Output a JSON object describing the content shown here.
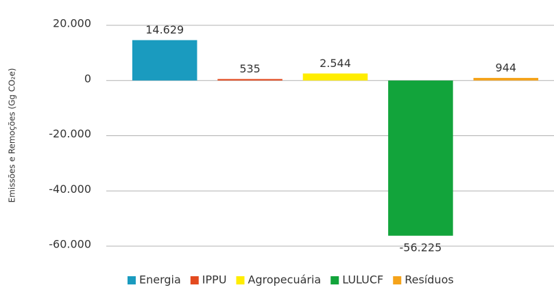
{
  "chart_data": {
    "type": "bar",
    "y_label": "Emissões e Remoções (Gg CO₂e)",
    "categories": [
      "Energia",
      "IPPU",
      "Agropecuária",
      "LULUCF",
      "Resíduos"
    ],
    "values": [
      14629,
      535,
      2544,
      -56225,
      944
    ],
    "value_labels": [
      "14.629",
      "535",
      "2.544",
      "-56.225",
      "944"
    ],
    "colors": [
      "#1a9bbf",
      "#e34a1f",
      "#ffed00",
      "#12a43b",
      "#f5a31a"
    ],
    "ylim": [
      -60000,
      20000
    ],
    "yticks": [
      {
        "value": 20000,
        "label": "20.000"
      },
      0,
      {
        "value": -20000,
        "label": "-20.000"
      },
      {
        "value": -40000,
        "label": "-40.000"
      },
      {
        "value": -60000,
        "label": "-60.000"
      }
    ],
    "grid": true,
    "legend": "bottom"
  }
}
